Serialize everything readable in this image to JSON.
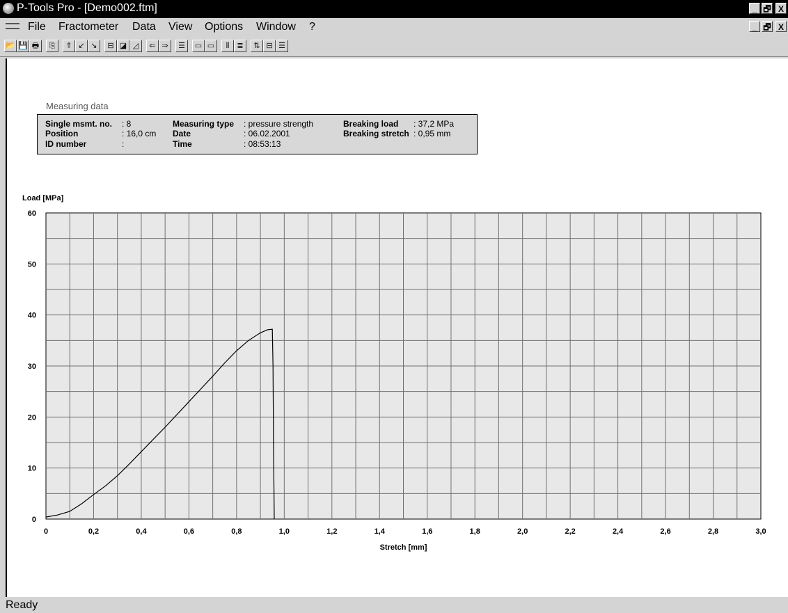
{
  "window": {
    "title": "P-Tools Pro - [Demo002.ftm]",
    "controls": {
      "minimize": "_",
      "restore": "🗗",
      "close": "X"
    }
  },
  "menubar": {
    "items": [
      "File",
      "Fractometer",
      "Data",
      "View",
      "Options",
      "Window",
      "?"
    ],
    "controls": {
      "minimize": "_",
      "restore": "🗗",
      "close": "X"
    }
  },
  "toolbar": {
    "buttons": [
      {
        "name": "open-icon",
        "glyph": "📂"
      },
      {
        "name": "save-icon",
        "glyph": "💾"
      },
      {
        "name": "print-icon",
        "glyph": "🖶"
      },
      {
        "name": "copy-icon",
        "glyph": "⎘"
      },
      {
        "name": "upload-icon",
        "glyph": "⇑"
      },
      {
        "name": "import-icon",
        "glyph": "↙"
      },
      {
        "name": "export-icon",
        "glyph": "↘"
      },
      {
        "name": "measure-icon",
        "glyph": "⊟"
      },
      {
        "name": "chart-icon",
        "glyph": "◪"
      },
      {
        "name": "graph-icon",
        "glyph": "◿"
      },
      {
        "name": "arrow-left-icon",
        "glyph": "⇐"
      },
      {
        "name": "arrow-right-icon",
        "glyph": "⇒"
      },
      {
        "name": "table-icon",
        "glyph": "☰"
      },
      {
        "name": "display-a-icon",
        "glyph": "▭"
      },
      {
        "name": "display-b-icon",
        "glyph": "▭"
      },
      {
        "name": "columns-icon",
        "glyph": "⦀"
      },
      {
        "name": "rows-icon",
        "glyph": "≣"
      },
      {
        "name": "sort-icon",
        "glyph": "⇅"
      },
      {
        "name": "layout-icon",
        "glyph": "⊟"
      },
      {
        "name": "list-icon",
        "glyph": "☰"
      }
    ]
  },
  "measuring": {
    "title": "Measuring data",
    "single_label": "Single msmt. no.",
    "single_value": ": 8",
    "position_label": "Position",
    "position_value": ": 16,0 cm",
    "id_label": "ID number",
    "id_value": ":",
    "type_label": "Measuring type",
    "type_value": ": pressure strength",
    "date_label": "Date",
    "date_value": ": 06.02.2001",
    "time_label": "Time",
    "time_value": ": 08:53:13",
    "load_label": "Breaking load",
    "load_value": ": 37,2 MPa",
    "stretch_label": "Breaking stretch",
    "stretch_value": ": 0,95 mm"
  },
  "status": {
    "text": "Ready"
  },
  "chart_data": {
    "type": "line",
    "xlabel": "Stretch [mm]",
    "ylabel": "Load [MPa]",
    "xlim": [
      0,
      3.0
    ],
    "ylim": [
      0,
      60
    ],
    "x_ticks": [
      "0",
      "0,2",
      "0,4",
      "0,6",
      "0,8",
      "1,0",
      "1,2",
      "1,4",
      "1,6",
      "1,8",
      "2,0",
      "2,2",
      "2,4",
      "2,6",
      "2,8",
      "3,0"
    ],
    "y_ticks": [
      "0",
      "10",
      "20",
      "30",
      "40",
      "50",
      "60"
    ],
    "grid": true,
    "colors": {
      "plot_bg": "#e8e8e8",
      "grid": "#707070",
      "line": "#000000"
    },
    "series": [
      {
        "x": [
          0,
          0.05,
          0.1,
          0.15,
          0.2,
          0.25,
          0.3,
          0.35,
          0.4,
          0.45,
          0.5,
          0.55,
          0.6,
          0.65,
          0.7,
          0.75,
          0.8,
          0.85,
          0.9,
          0.93,
          0.95,
          0.953,
          0.955,
          0.958
        ],
        "y": [
          0.4,
          0.8,
          1.5,
          3.0,
          4.8,
          6.5,
          8.5,
          10.8,
          13.2,
          15.6,
          18.0,
          20.5,
          23.0,
          25.5,
          28.0,
          30.6,
          33.0,
          35.0,
          36.5,
          37.1,
          37.2,
          30,
          15,
          0
        ]
      }
    ]
  }
}
